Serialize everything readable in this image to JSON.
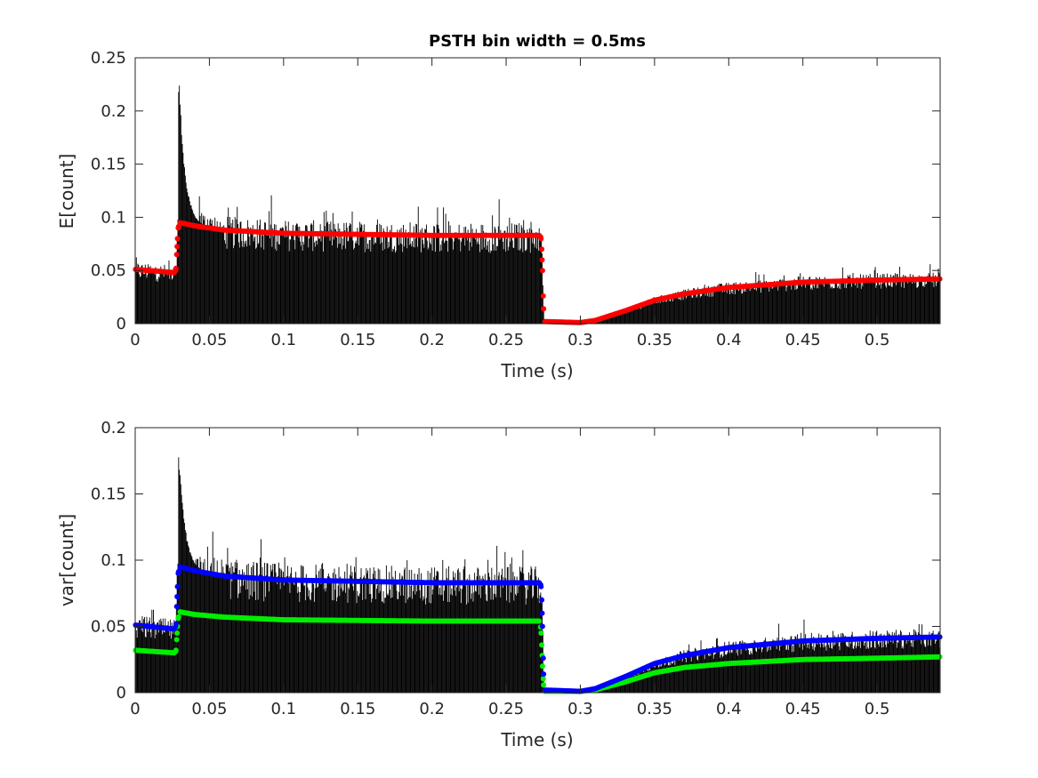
{
  "chart_data": [
    {
      "type": "bar",
      "title": "PSTH bin width = 0.5ms",
      "xlabel": "Time (s)",
      "ylabel": "E[count]",
      "xlim": [
        0,
        0.5425
      ],
      "ylim": [
        0,
        0.25
      ],
      "xticks": [
        "0",
        "0.05",
        "0.1",
        "0.15",
        "0.2",
        "0.25",
        "0.3",
        "0.35",
        "0.4",
        "0.45",
        "0.5"
      ],
      "yticks": [
        "0",
        "0.05",
        "0.1",
        "0.15",
        "0.2",
        "0.25"
      ],
      "bin_width_s": 0.0005,
      "histogram_color": "#000000",
      "onset_transient": {
        "peak": 0.24,
        "at": 0.0295,
        "decay_s": 0.004
      },
      "series": [
        {
          "name": "mean",
          "color": "#ff0000",
          "x": [
            0,
            0.027,
            0.0275,
            0.028,
            0.0285,
            0.029,
            0.03,
            0.04,
            0.06,
            0.1,
            0.2,
            0.273,
            0.2735,
            0.274,
            0.2745,
            0.2755,
            0.3,
            0.31,
            0.33,
            0.35,
            0.37,
            0.4,
            0.45,
            0.5,
            0.5425
          ],
          "y": [
            0.051,
            0.048,
            0.052,
            0.065,
            0.08,
            0.09,
            0.095,
            0.092,
            0.088,
            0.085,
            0.083,
            0.083,
            0.08,
            0.07,
            0.05,
            0.002,
            0.001,
            0.003,
            0.012,
            0.022,
            0.028,
            0.034,
            0.039,
            0.041,
            0.042
          ]
        }
      ]
    },
    {
      "type": "bar",
      "xlabel": "Time (s)",
      "ylabel": "var[count]",
      "xlim": [
        0,
        0.5425
      ],
      "ylim": [
        0,
        0.2
      ],
      "xticks": [
        "0",
        "0.05",
        "0.1",
        "0.15",
        "0.2",
        "0.25",
        "0.3",
        "0.35",
        "0.4",
        "0.45",
        "0.5"
      ],
      "yticks": [
        "0",
        "0.05",
        "0.1",
        "0.15",
        "0.2"
      ],
      "bin_width_s": 0.0005,
      "histogram_color": "#000000",
      "onset_transient": {
        "peak": 0.183,
        "at": 0.0295,
        "decay_s": 0.004
      },
      "series": [
        {
          "name": "variance-blue",
          "color": "#0000ff",
          "x": [
            0,
            0.027,
            0.0275,
            0.028,
            0.0285,
            0.029,
            0.03,
            0.04,
            0.06,
            0.1,
            0.2,
            0.273,
            0.2735,
            0.274,
            0.2745,
            0.2755,
            0.3,
            0.31,
            0.33,
            0.35,
            0.37,
            0.4,
            0.45,
            0.5,
            0.5425
          ],
          "y": [
            0.051,
            0.048,
            0.052,
            0.065,
            0.08,
            0.09,
            0.095,
            0.092,
            0.088,
            0.085,
            0.083,
            0.083,
            0.08,
            0.07,
            0.05,
            0.002,
            0.001,
            0.003,
            0.012,
            0.022,
            0.028,
            0.034,
            0.039,
            0.041,
            0.042
          ]
        },
        {
          "name": "variance-green",
          "color": "#00ee00",
          "x": [
            0,
            0.027,
            0.0275,
            0.028,
            0.0285,
            0.029,
            0.03,
            0.04,
            0.06,
            0.1,
            0.2,
            0.273,
            0.2735,
            0.274,
            0.2745,
            0.2755,
            0.3,
            0.31,
            0.33,
            0.35,
            0.37,
            0.4,
            0.45,
            0.5,
            0.5425
          ],
          "y": [
            0.032,
            0.03,
            0.032,
            0.04,
            0.05,
            0.056,
            0.061,
            0.059,
            0.057,
            0.055,
            0.054,
            0.054,
            0.045,
            0.036,
            0.02,
            0.001,
            0.001,
            0.002,
            0.008,
            0.015,
            0.019,
            0.022,
            0.025,
            0.026,
            0.027
          ]
        }
      ]
    }
  ]
}
